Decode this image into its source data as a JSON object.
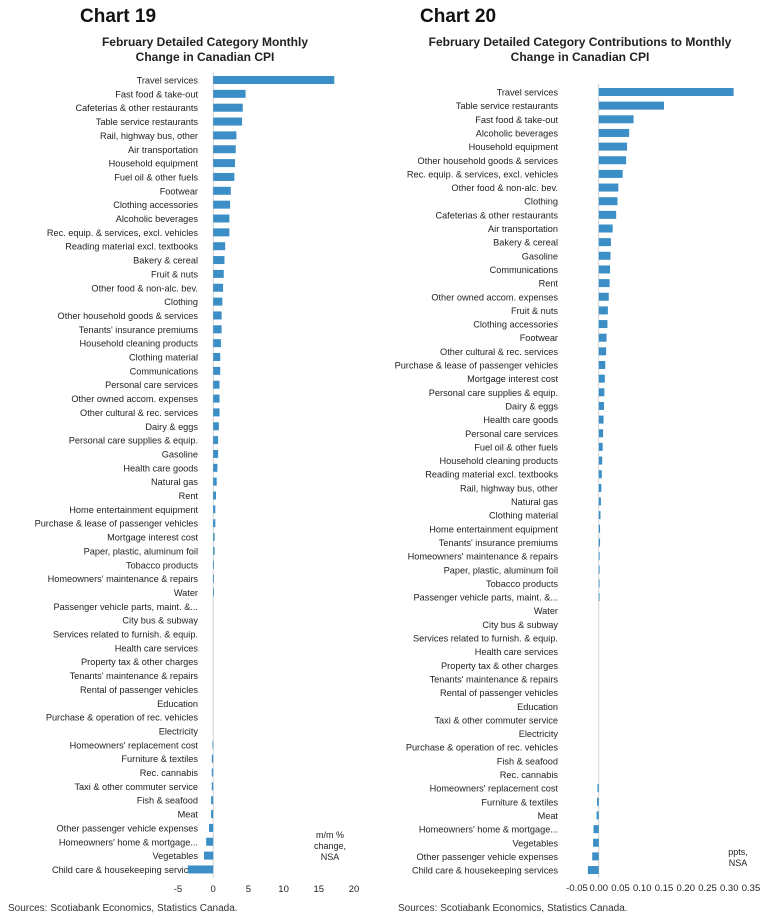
{
  "charts": [
    {
      "heading": "Chart 19",
      "title_lines": [
        "February Detailed Category Monthly",
        "Change in Canadian CPI"
      ],
      "unit_lines": [
        "m/m %",
        "change,",
        "NSA"
      ],
      "source": "Sources: Scotiabank Economics, Statistics Canada."
    },
    {
      "heading": "Chart 20",
      "title_lines": [
        "February Detailed Category Contributions to Monthly",
        "Change in Canadian CPI"
      ],
      "unit_lines": [
        "ppts,",
        "NSA"
      ],
      "source": "Sources: Scotiabank Economics, Statistics Canada."
    }
  ],
  "chart_data": [
    {
      "type": "bar",
      "orientation": "horizontal",
      "title": "February Detailed Category Monthly Change in Canadian CPI",
      "xlabel": "m/m % change, NSA",
      "xlim": [
        -5,
        20
      ],
      "xticks": [
        -5,
        0,
        5,
        10,
        15,
        20
      ],
      "tick_labels": [
        "-5",
        "0",
        "5",
        "10",
        "15",
        "20"
      ],
      "color": "#3b8fc6",
      "categories": [
        "Travel services",
        "Fast food & take-out",
        "Cafeterias & other restaurants",
        "Table service restaurants",
        "Rail, highway bus, other",
        "Air transportation",
        "Household equipment",
        "Fuel oil & other fuels",
        "Footwear",
        "Clothing accessories",
        "Alcoholic beverages",
        "Rec. equip. & services, excl. vehicles",
        "Reading material excl. textbooks",
        "Bakery & cereal",
        "Fruit & nuts",
        "Other food & non-alc. bev.",
        "Clothing",
        "Other household goods & services",
        "Tenants' insurance premiums",
        "Household cleaning products",
        "Clothing material",
        "Communications",
        "Personal care services",
        "Other owned accom. expenses",
        "Other cultural & rec. services",
        "Dairy & eggs",
        "Personal care supplies & equip.",
        "Gasoline",
        "Health care goods",
        "Natural gas",
        "Rent",
        "Home entertainment equipment",
        "Purchase & lease of passenger vehicles",
        "Mortgage interest cost",
        "Paper, plastic, aluminum foil",
        "Tobacco products",
        "Homeowners' maintenance & repairs",
        "Water",
        "Passenger vehicle parts, maint. &...",
        "City bus & subway",
        "Services related to furnish. & equip.",
        "Health care services",
        "Property tax & other charges",
        "Tenants' maintenance & repairs",
        "Rental of passenger vehicles",
        "Education",
        "Purchase & operation of rec. vehicles",
        "Electricity",
        "Homeowners' replacement cost",
        "Furniture & textiles",
        "Rec. cannabis",
        "Taxi & other commuter service",
        "Fish & seafood",
        "Meat",
        "Other passenger vehicle expenses",
        "Homeowners' home & mortgage...",
        "Vegetables",
        "Child care & housekeeping services"
      ],
      "values": [
        17.2,
        4.6,
        4.2,
        4.1,
        3.3,
        3.2,
        3.1,
        3.0,
        2.5,
        2.4,
        2.3,
        2.3,
        1.7,
        1.6,
        1.5,
        1.4,
        1.3,
        1.2,
        1.2,
        1.1,
        1.0,
        1.0,
        0.9,
        0.9,
        0.9,
        0.8,
        0.7,
        0.7,
        0.6,
        0.5,
        0.4,
        0.3,
        0.3,
        0.2,
        0.2,
        0.1,
        0.1,
        0.1,
        0.0,
        0.0,
        0.0,
        0.0,
        0.0,
        0.0,
        0.0,
        0.0,
        0.0,
        0.0,
        -0.1,
        -0.2,
        -0.2,
        -0.2,
        -0.3,
        -0.3,
        -0.6,
        -1.0,
        -1.3,
        -3.6
      ]
    },
    {
      "type": "bar",
      "orientation": "horizontal",
      "title": "February Detailed Category Contributions to Monthly Change in Canadian CPI",
      "xlabel": "ppts, NSA",
      "xlim": [
        -0.05,
        0.35
      ],
      "xticks": [
        -0.05,
        0.0,
        0.05,
        0.1,
        0.15,
        0.2,
        0.25,
        0.3,
        0.35
      ],
      "tick_labels": [
        "-0.05",
        "0.00",
        "0.05",
        "0.10",
        "0.15",
        "0.20",
        "0.25",
        "0.30",
        "0.35"
      ],
      "color": "#3b8fc6",
      "categories": [
        "Travel services",
        "Table service restaurants",
        "Fast food & take-out",
        "Alcoholic beverages",
        "Household equipment",
        "Other household goods & services",
        "Rec. equip. & services, excl. vehicles",
        "Other food & non-alc. bev.",
        "Clothing",
        "Cafeterias & other restaurants",
        "Air transportation",
        "Bakery & cereal",
        "Gasoline",
        "Communications",
        "Rent",
        "Other owned accom. expenses",
        "Fruit & nuts",
        "Clothing accessories",
        "Footwear",
        "Other cultural & rec. services",
        "Purchase & lease of passenger vehicles",
        "Mortgage interest cost",
        "Personal care supplies & equip.",
        "Dairy & eggs",
        "Health care goods",
        "Personal care services",
        "Fuel oil & other fuels",
        "Household cleaning products",
        "Reading material excl. textbooks",
        "Rail, highway bus, other",
        "Natural gas",
        "Clothing material",
        "Home entertainment equipment",
        "Tenants' insurance premiums",
        "Homeowners' maintenance & repairs",
        "Paper, plastic, aluminum foil",
        "Tobacco products",
        "Passenger vehicle parts, maint. &...",
        "Water",
        "City bus & subway",
        "Services related to furnish. & equip.",
        "Health care services",
        "Property tax & other charges",
        "Tenants' maintenance & repairs",
        "Rental of passenger vehicles",
        "Education",
        "Taxi & other commuter service",
        "Electricity",
        "Purchase & operation of rec. vehicles",
        "Fish & seafood",
        "Rec. cannabis",
        "Homeowners' replacement cost",
        "Furniture & textiles",
        "Meat",
        "Homeowners' home & mortgage...",
        "Vegetables",
        "Other passenger vehicle expenses",
        "Child care & housekeeping services"
      ],
      "values": [
        0.31,
        0.15,
        0.08,
        0.07,
        0.065,
        0.063,
        0.055,
        0.045,
        0.043,
        0.04,
        0.032,
        0.028,
        0.027,
        0.026,
        0.025,
        0.023,
        0.021,
        0.02,
        0.018,
        0.017,
        0.015,
        0.014,
        0.013,
        0.012,
        0.011,
        0.01,
        0.009,
        0.008,
        0.007,
        0.006,
        0.005,
        0.004,
        0.003,
        0.003,
        0.002,
        0.002,
        0.001,
        0.001,
        0.0,
        0.0,
        0.0,
        0.0,
        0.0,
        0.0,
        0.0,
        0.0,
        0.0,
        0.0,
        0.0,
        0.0,
        0.0,
        -0.003,
        -0.004,
        -0.005,
        -0.012,
        -0.013,
        -0.015,
        -0.025
      ]
    }
  ]
}
